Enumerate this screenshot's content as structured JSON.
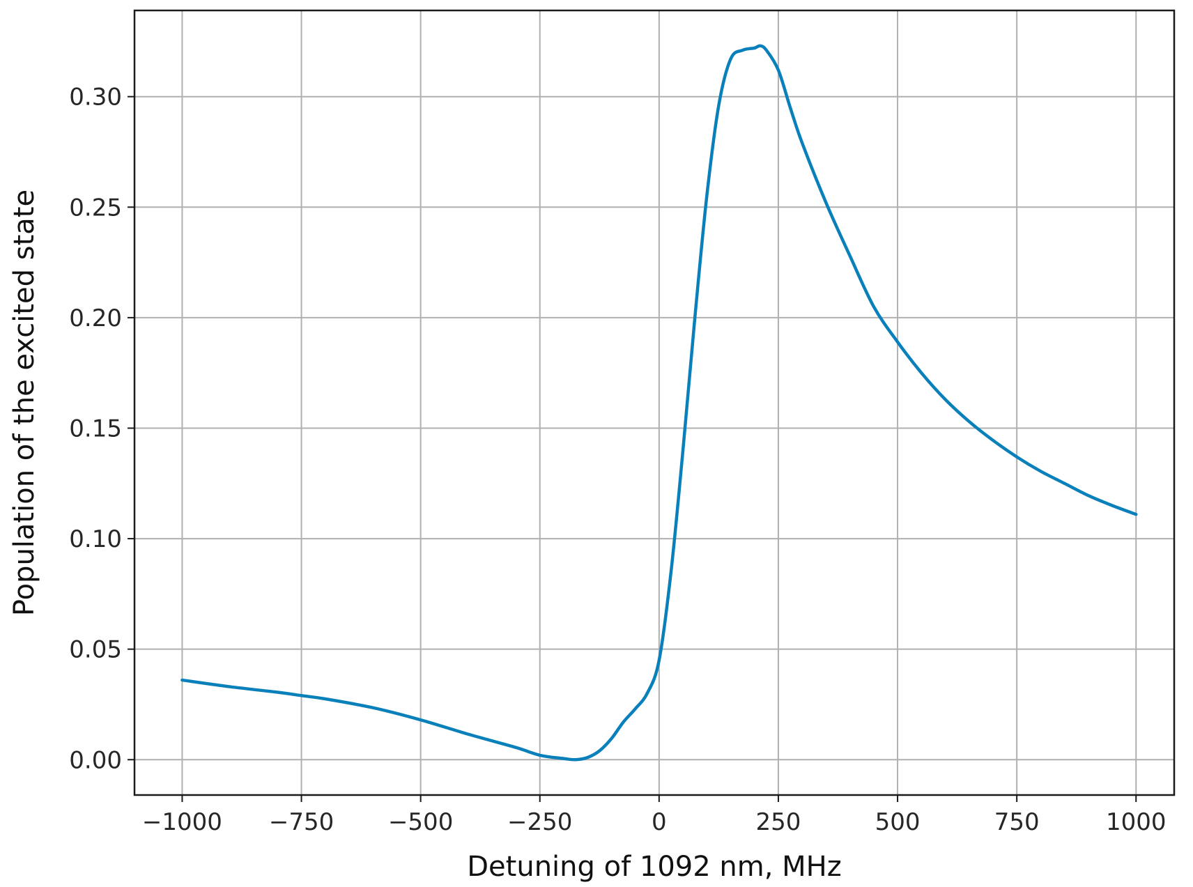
{
  "chart_data": {
    "type": "line",
    "title": "",
    "xlabel": "Detuning of 1092 nm, MHz",
    "ylabel": "Population of the excited state",
    "xlim": [
      -1100,
      1080
    ],
    "ylim": [
      -0.016,
      0.339
    ],
    "xticks": [
      -1000,
      -750,
      -500,
      -250,
      0,
      250,
      500,
      750,
      1000
    ],
    "xtick_labels": [
      "−1000",
      "−750",
      "−500",
      "−250",
      "0",
      "250",
      "500",
      "750",
      "1000"
    ],
    "yticks": [
      0.0,
      0.05,
      0.1,
      0.15,
      0.2,
      0.25,
      0.3
    ],
    "ytick_labels": [
      "0.00",
      "0.05",
      "0.10",
      "0.15",
      "0.20",
      "0.25",
      "0.30"
    ],
    "grid": true,
    "legend": "none",
    "line_color": "#0a80bb",
    "series": [
      {
        "x": [
          -1000,
          -900,
          -800,
          -750,
          -700,
          -600,
          -500,
          -400,
          -300,
          -250,
          -200,
          -175,
          -150,
          -125,
          -100,
          -75,
          -50,
          -25,
          0,
          25,
          50,
          75,
          100,
          125,
          150,
          175,
          200,
          212,
          225,
          250,
          275,
          300,
          350,
          400,
          450,
          500,
          550,
          600,
          650,
          700,
          750,
          800,
          850,
          900,
          950,
          1000
        ],
        "y": [
          0.036,
          0.033,
          0.0305,
          0.029,
          0.0275,
          0.0235,
          0.018,
          0.0115,
          0.0055,
          0.002,
          0.0005,
          0.0,
          0.001,
          0.004,
          0.0095,
          0.017,
          0.023,
          0.03,
          0.045,
          0.085,
          0.14,
          0.2,
          0.255,
          0.296,
          0.317,
          0.321,
          0.322,
          0.323,
          0.321,
          0.312,
          0.295,
          0.279,
          0.252,
          0.228,
          0.205,
          0.189,
          0.175,
          0.163,
          0.153,
          0.1445,
          0.137,
          0.1305,
          0.125,
          0.1195,
          0.115,
          0.111
        ]
      }
    ]
  }
}
